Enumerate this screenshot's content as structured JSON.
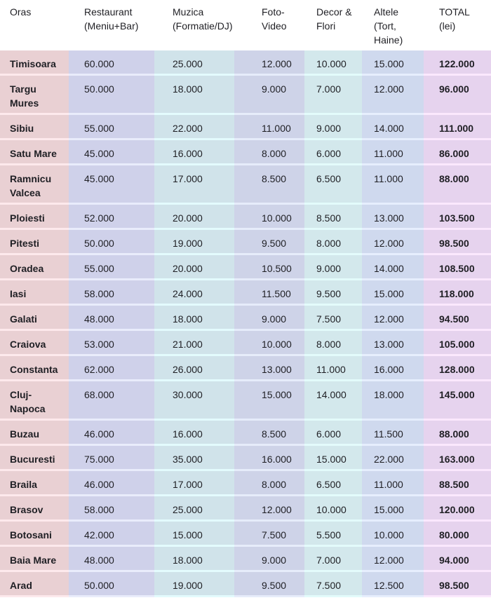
{
  "table": {
    "headers": [
      [
        "Oras"
      ],
      [
        "Restaurant",
        "(Meniu+Bar)"
      ],
      [
        "Muzica",
        "(Formatie/DJ)"
      ],
      [
        "Foto-",
        "Video"
      ],
      [
        "Decor &",
        "Flori"
      ],
      [
        "Altele",
        "(Tort,",
        "Haine)"
      ],
      [
        "TOTAL",
        "(lei)"
      ]
    ],
    "rows": [
      [
        [
          "Timisoara"
        ],
        "60.000",
        "25.000",
        "12.000",
        "10.000",
        "15.000",
        "122.000"
      ],
      [
        [
          "Targu",
          "Mures"
        ],
        "50.000",
        "18.000",
        "9.000",
        "7.000",
        "12.000",
        "96.000"
      ],
      [
        [
          "Sibiu"
        ],
        "55.000",
        "22.000",
        "11.000",
        "9.000",
        "14.000",
        "111.000"
      ],
      [
        [
          "Satu Mare"
        ],
        "45.000",
        "16.000",
        "8.000",
        "6.000",
        "11.000",
        "86.000"
      ],
      [
        [
          "Ramnicu",
          "Valcea"
        ],
        "45.000",
        "17.000",
        "8.500",
        "6.500",
        "11.000",
        "88.000"
      ],
      [
        [
          "Ploiesti"
        ],
        "52.000",
        "20.000",
        "10.000",
        "8.500",
        "13.000",
        "103.500"
      ],
      [
        [
          "Pitesti"
        ],
        "50.000",
        "19.000",
        "9.500",
        "8.000",
        "12.000",
        "98.500"
      ],
      [
        [
          "Oradea"
        ],
        "55.000",
        "20.000",
        "10.500",
        "9.000",
        "14.000",
        "108.500"
      ],
      [
        [
          "Iasi"
        ],
        "58.000",
        "24.000",
        "11.500",
        "9.500",
        "15.000",
        "118.000"
      ],
      [
        [
          "Galati"
        ],
        "48.000",
        "18.000",
        "9.000",
        "7.500",
        "12.000",
        "94.500"
      ],
      [
        [
          "Craiova"
        ],
        "53.000",
        "21.000",
        "10.000",
        "8.000",
        "13.000",
        "105.000"
      ],
      [
        [
          "Constanta"
        ],
        "62.000",
        "26.000",
        "13.000",
        "11.000",
        "16.000",
        "128.000"
      ],
      [
        [
          "Cluj-",
          "Napoca"
        ],
        "68.000",
        "30.000",
        "15.000",
        "14.000",
        "18.000",
        "145.000"
      ],
      [
        [
          "Buzau"
        ],
        "46.000",
        "16.000",
        "8.500",
        "6.000",
        "11.500",
        "88.000"
      ],
      [
        [
          "Bucuresti"
        ],
        "75.000",
        "35.000",
        "16.000",
        "15.000",
        "22.000",
        "163.000"
      ],
      [
        [
          "Braila"
        ],
        "46.000",
        "17.000",
        "8.000",
        "6.500",
        "11.000",
        "88.500"
      ],
      [
        [
          "Brasov"
        ],
        "58.000",
        "25.000",
        "12.000",
        "10.000",
        "15.000",
        "120.000"
      ],
      [
        [
          "Botosani"
        ],
        "42.000",
        "15.000",
        "7.500",
        "5.500",
        "10.000",
        "80.000"
      ],
      [
        [
          "Baia Mare"
        ],
        "48.000",
        "18.000",
        "9.000",
        "7.000",
        "12.000",
        "94.000"
      ],
      [
        [
          "Arad"
        ],
        "50.000",
        "19.000",
        "9.500",
        "7.500",
        "12.500",
        "98.500"
      ]
    ],
    "column_colors": [
      "#e9d0d3",
      "#cfd1ea",
      "#d0e3ea",
      "#ced3e8",
      "#d3e8ec",
      "#cfd9ee",
      "#e6d3ee"
    ]
  }
}
